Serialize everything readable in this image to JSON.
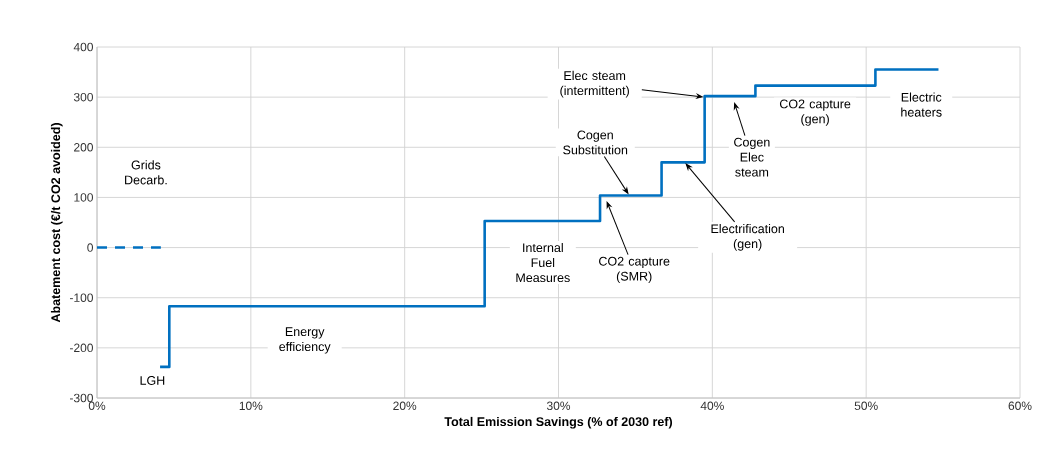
{
  "chart_data": {
    "type": "step",
    "xlabel": "Total Emission Savings (% of 2030 ref)",
    "ylabel": "Abatement cost (€/t CO2 avoided)",
    "series": [
      {
        "color": "#0070c0",
        "line_style": "dashed",
        "x": [
          0,
          4.15
        ],
        "values": [
          0,
          0
        ]
      },
      {
        "color": "#0070c0",
        "line_style": "solid",
        "x": [
          4.1,
          4.7,
          25.2,
          32.7,
          36.7,
          39.5,
          42.8,
          50.6,
          54.7
        ],
        "values": [
          -238,
          -117,
          53,
          104,
          170,
          302,
          323,
          355,
          355
        ]
      }
    ],
    "xlim": [
      0,
      60
    ],
    "ylim": [
      -300,
      400
    ],
    "xticks": [
      {
        "value": 0,
        "label": "0%"
      },
      {
        "value": 10,
        "label": "10%"
      },
      {
        "value": 20,
        "label": "20%"
      },
      {
        "value": 30,
        "label": "30%"
      },
      {
        "value": 40,
        "label": "40%"
      },
      {
        "value": 50,
        "label": "50%"
      },
      {
        "value": 60,
        "label": "60%"
      }
    ],
    "yticks": [
      -300,
      -200,
      -100,
      0,
      100,
      200,
      300,
      400
    ],
    "grid": true,
    "annotations": [
      "Grids Decarb.",
      "LGH",
      "Energy efficiency",
      "Internal Fuel Measures",
      {
        "text": "CO2 capture (SMR)",
        "x": 33.1,
        "y": 95
      },
      {
        "text": "Cogen Substitution",
        "x": 34.6,
        "y": 104
      },
      {
        "text": "Electrification (gen)",
        "x": 38.2,
        "y": 170
      },
      {
        "text": "Elec steam (intermittent)",
        "x": 39.5,
        "y": 300
      },
      {
        "text": "Cogen Elec steam",
        "x": 41.4,
        "y": 292
      },
      "CO2 capture (gen)",
      "Electric heaters"
    ]
  }
}
